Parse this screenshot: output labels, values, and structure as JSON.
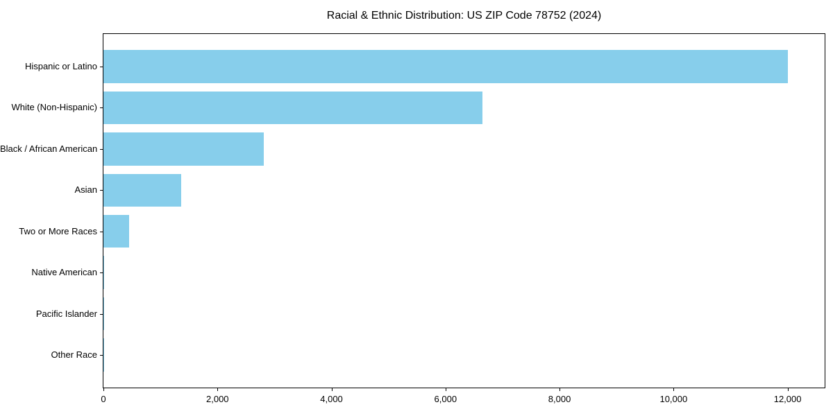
{
  "chart_data": {
    "type": "bar",
    "orientation": "horizontal",
    "title": "Racial & Ethnic Distribution: US ZIP Code 78752 (2024)",
    "categories": [
      "Hispanic or Latino",
      "White (Non-Hispanic)",
      "Black / African American",
      "Asian",
      "Two or More Races",
      "Native American",
      "Pacific Islander",
      "Other Race"
    ],
    "values": [
      12010,
      6650,
      2815,
      1360,
      455,
      10,
      5,
      5
    ],
    "xlabel": "",
    "ylabel": "",
    "x_ticks": [
      0,
      2000,
      4000,
      6000,
      8000,
      10000,
      12000
    ],
    "x_tick_labels": [
      "0",
      "2,000",
      "4,000",
      "6,000",
      "8,000",
      "10,000",
      "12,000"
    ],
    "xlim": [
      0,
      12650
    ],
    "grid": false,
    "legend": "none",
    "bar_color": "#87CEEB",
    "background_color": "#FFFFFF",
    "axis_color": "#000000",
    "text_color": "#000000"
  }
}
